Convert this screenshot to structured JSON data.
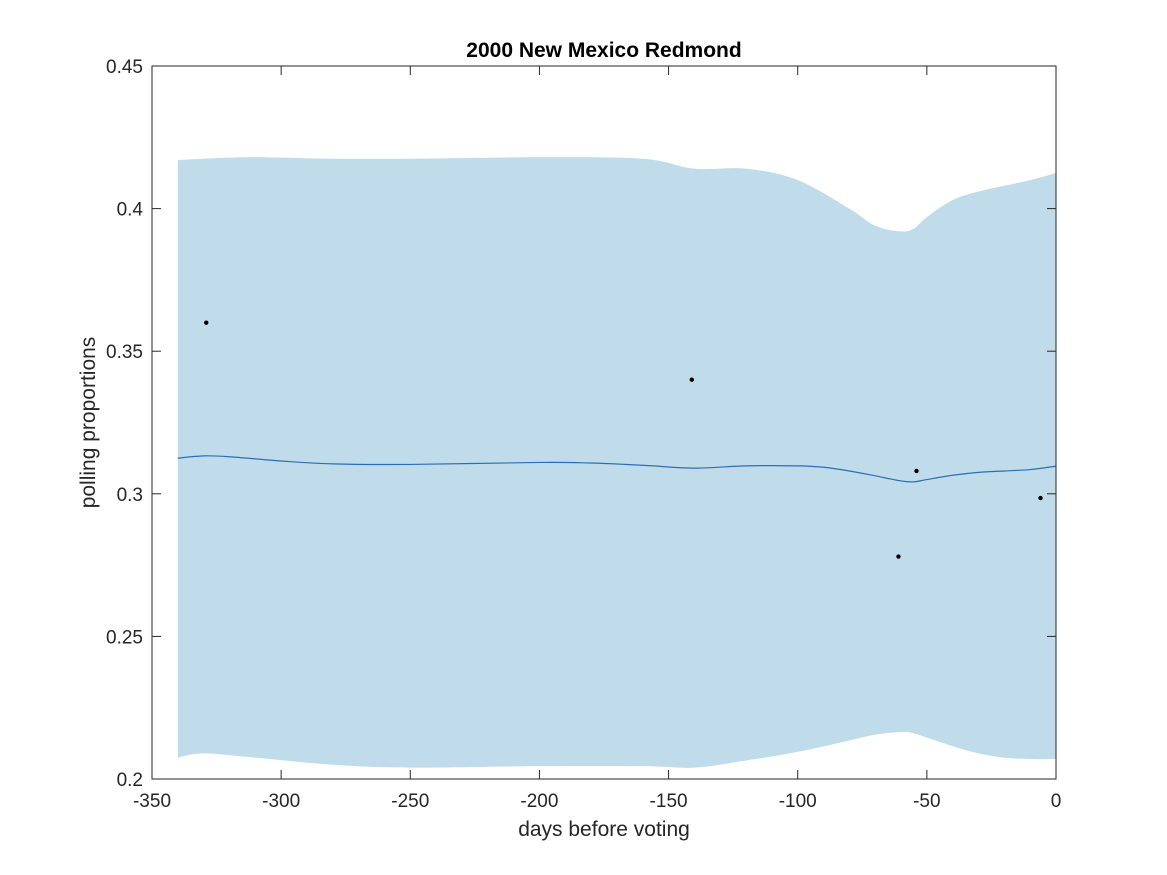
{
  "chart_data": {
    "type": "line",
    "title": "2000 New Mexico Redmond",
    "xlabel": "days before voting",
    "ylabel": "polling proportions",
    "xlim": [
      -350,
      0
    ],
    "ylim": [
      0.2,
      0.45
    ],
    "xticks": [
      -350,
      -300,
      -250,
      -200,
      -150,
      -100,
      -50,
      0
    ],
    "yticks": [
      0.2,
      0.25,
      0.3,
      0.35,
      0.4,
      0.45
    ],
    "xtick_labels": [
      "-350",
      "-300",
      "-250",
      "-200",
      "-150",
      "-100",
      "-50",
      "0"
    ],
    "ytick_labels": [
      "0.2",
      "0.25",
      "0.3",
      "0.35",
      "0.4",
      "0.45"
    ],
    "grid": false,
    "colors": {
      "band": "#c0dcea",
      "line": "#2a6fb5",
      "points": "#000000",
      "axis": "#262626"
    },
    "band": {
      "x": [
        -340,
        -330,
        -310,
        -280,
        -250,
        -200,
        -160,
        -140,
        -120,
        -100,
        -80,
        -70,
        -60,
        -55,
        -50,
        -40,
        -30,
        -20,
        -10,
        0
      ],
      "upper": [
        0.417,
        0.4175,
        0.418,
        0.4175,
        0.4175,
        0.418,
        0.4175,
        0.414,
        0.414,
        0.41,
        0.4,
        0.394,
        0.392,
        0.393,
        0.397,
        0.403,
        0.406,
        0.408,
        0.41,
        0.4125
      ],
      "lower": [
        0.2075,
        0.209,
        0.2075,
        0.205,
        0.204,
        0.2045,
        0.2045,
        0.204,
        0.2065,
        0.2095,
        0.2135,
        0.2155,
        0.2165,
        0.216,
        0.2145,
        0.2115,
        0.209,
        0.2075,
        0.207,
        0.207
      ]
    },
    "series": [
      {
        "x": [
          -340,
          -330,
          -320,
          -300,
          -280,
          -250,
          -200,
          -180,
          -160,
          -140,
          -120,
          -100,
          -90,
          -80,
          -70,
          -60,
          -55,
          -50,
          -40,
          -30,
          -20,
          -10,
          0
        ],
        "values": [
          0.3125,
          0.3133,
          0.313,
          0.3115,
          0.3105,
          0.3103,
          0.311,
          0.3108,
          0.31,
          0.309,
          0.3098,
          0.3098,
          0.3093,
          0.308,
          0.3063,
          0.3045,
          0.3042,
          0.305,
          0.3065,
          0.3075,
          0.308,
          0.3085,
          0.3097
        ]
      }
    ],
    "points": {
      "x": [
        -329,
        -141,
        -61,
        -54,
        -6
      ],
      "y": [
        0.36,
        0.34,
        0.278,
        0.308,
        0.2985
      ]
    }
  }
}
